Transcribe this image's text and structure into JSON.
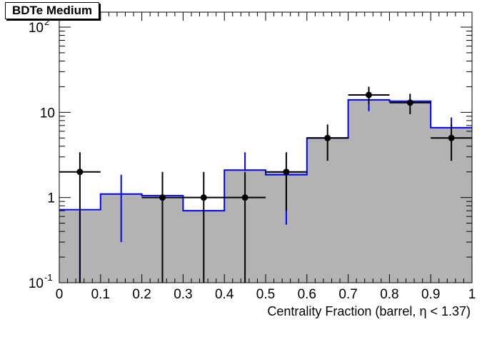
{
  "chart_data": {
    "type": "bar",
    "title": "BDTe Medium",
    "xlabel_pre": "Centrality Fraction (barrel,",
    "xlabel_eta": "η",
    "xlabel_post": " < 1.37)",
    "ylabel": "",
    "xlim": [
      0,
      1
    ],
    "ylim": [
      0.1,
      150
    ],
    "yscale": "log",
    "grid": false,
    "legend": "none",
    "x_ticks": [
      "0",
      "0.1",
      "0.2",
      "0.3",
      "0.4",
      "0.5",
      "0.6",
      "0.7",
      "0.8",
      "0.9",
      "1"
    ],
    "y_ticks": [
      {
        "value": 0.1,
        "label": "10",
        "exp": "-1"
      },
      {
        "value": 1,
        "label": "1",
        "exp": ""
      },
      {
        "value": 10,
        "label": "10",
        "exp": ""
      },
      {
        "value": 100,
        "label": "10",
        "exp": "2"
      }
    ],
    "bin_edges": [
      0,
      0.1,
      0.2,
      0.3,
      0.4,
      0.5,
      0.6,
      0.7,
      0.8,
      0.9,
      1.0
    ],
    "series": [
      {
        "kind": "filled-histogram",
        "color": "#b3b3b3",
        "values": [
          0.7,
          1.1,
          1.0,
          0.7,
          2.1,
          2.0,
          5.0,
          14.0,
          13.0,
          6.5
        ]
      },
      {
        "kind": "step-histogram",
        "color": "#0000ff",
        "values": [
          0.72,
          1.1,
          1.05,
          0.7,
          2.1,
          1.85,
          5.0,
          14.0,
          13.5,
          6.6
        ],
        "errors": [
          {
            "x": 0.05,
            "low": 0.1,
            "high": 0.72
          },
          {
            "x": 0.15,
            "low": 0.3,
            "high": 1.85
          },
          {
            "x": 0.45,
            "low": 2.1,
            "high": 3.4
          },
          {
            "x": 0.55,
            "low": 0.48,
            "high": 1.85
          },
          {
            "x": 0.75,
            "low": 10.3,
            "high": 14.0
          },
          {
            "x": 0.95,
            "low": 6.6,
            "high": 8.7
          }
        ]
      },
      {
        "kind": "data-points",
        "color": "#000000",
        "points": [
          {
            "x": 0.05,
            "y": 2.0,
            "low": 0.1,
            "high": 3.4
          },
          {
            "x": 0.25,
            "y": 1.0,
            "low": 0.1,
            "high": 2.0
          },
          {
            "x": 0.35,
            "y": 1.0,
            "low": 0.1,
            "high": 2.0
          },
          {
            "x": 0.45,
            "y": 1.0,
            "low": 0.1,
            "high": 2.0
          },
          {
            "x": 0.55,
            "y": 2.0,
            "low": 0.7,
            "high": 3.4
          },
          {
            "x": 0.65,
            "y": 5.0,
            "low": 2.7,
            "high": 7.2
          },
          {
            "x": 0.75,
            "y": 16.0,
            "low": 12.5,
            "high": 20.0
          },
          {
            "x": 0.85,
            "y": 13.0,
            "low": 9.5,
            "high": 16.5
          },
          {
            "x": 0.95,
            "y": 5.0,
            "low": 2.7,
            "high": 7.2
          }
        ]
      }
    ]
  }
}
